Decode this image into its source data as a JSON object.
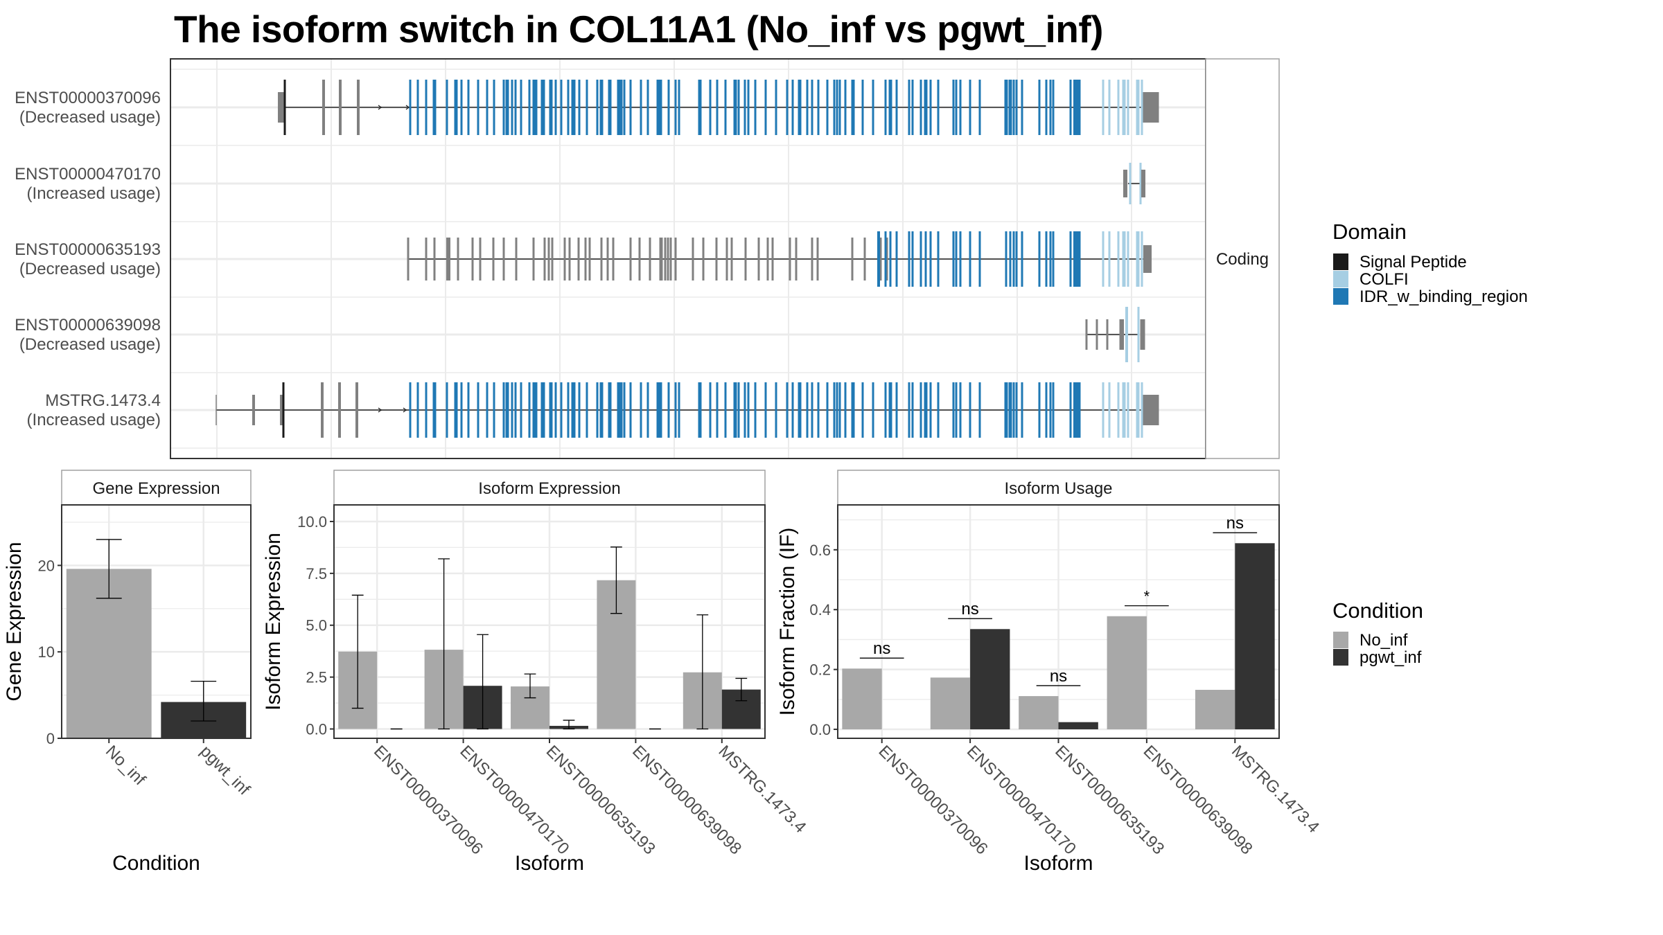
{
  "title": "The isoform switch in COL11A1 (No_inf vs pgwt_inf)",
  "colors": {
    "No_inf": "#a8a8a8",
    "pgwt_inf": "#333333",
    "signal_peptide": "#1a1a1a",
    "COLFI": "#a6cee3",
    "IDR": "#1f78b4",
    "utr": "#808080",
    "grid": "#ebebeb",
    "strip_border": "#a0a0a0",
    "panel_border": "#333333"
  },
  "chart_data": [
    {
      "type": "table",
      "name": "transcript_structure",
      "strip_label": "Coding",
      "rows": [
        {
          "id": "ENST00000370096",
          "label": "ENST00000370096",
          "sublabel": "(Decreased usage)"
        },
        {
          "id": "ENST00000470170",
          "label": "ENST00000470170",
          "sublabel": "(Increased usage)"
        },
        {
          "id": "ENST00000635193",
          "label": "ENST00000635193",
          "sublabel": "(Decreased usage)"
        },
        {
          "id": "ENST00000639098",
          "label": "ENST00000639098",
          "sublabel": "(Decreased usage)"
        },
        {
          "id": "MSTRG.1473.4",
          "label": "MSTRG.1473.4",
          "sublabel": "(Increased usage)"
        }
      ],
      "legend": {
        "title": "Domain",
        "items": [
          {
            "label": "Signal Peptide",
            "color_key": "signal_peptide"
          },
          {
            "label": "COLFI",
            "color_key": "COLFI"
          },
          {
            "label": "IDR_w_binding_region",
            "color_key": "IDR"
          }
        ],
        "placement": "right"
      }
    },
    {
      "type": "bar",
      "name": "gene_expression",
      "title": "Gene Expression",
      "xlabel": "Condition",
      "ylabel": "Gene Expression",
      "categories": [
        "No_inf",
        "pgwt_inf"
      ],
      "values": [
        19.6,
        4.2
      ],
      "error_low": [
        16.2,
        2.0
      ],
      "error_high": [
        23.0,
        6.6
      ],
      "ylim": [
        0,
        27
      ],
      "yticks": [
        0,
        10,
        20
      ]
    },
    {
      "type": "bar",
      "name": "isoform_expression",
      "title": "Isoform Expression",
      "xlabel": "Isoform",
      "ylabel": "Isoform Expression",
      "categories": [
        "ENST00000370096",
        "ENST00000470170",
        "ENST00000635193",
        "ENST00000639098",
        "MSTRG.1473.4"
      ],
      "series": [
        {
          "name": "No_inf",
          "values": [
            3.73,
            3.82,
            2.05,
            7.17,
            2.73
          ],
          "error_low": [
            1.0,
            0.0,
            1.5,
            5.57,
            0.0
          ],
          "error_high": [
            6.45,
            8.2,
            2.65,
            8.77,
            5.5
          ]
        },
        {
          "name": "pgwt_inf",
          "values": [
            0.0,
            2.08,
            0.15,
            0.0,
            1.9
          ],
          "error_low": [
            0.0,
            0.0,
            0.0,
            0.0,
            1.36
          ],
          "error_high": [
            0.0,
            4.55,
            0.42,
            0.0,
            2.44
          ]
        }
      ],
      "ylim": [
        -0.45,
        10.8
      ],
      "yticks": [
        0.0,
        2.5,
        5.0,
        7.5,
        10.0
      ],
      "ytick_labels": [
        "0.0",
        "2.5",
        "5.0",
        "7.5",
        "10.0"
      ]
    },
    {
      "type": "bar",
      "name": "isoform_usage",
      "title": "Isoform Usage",
      "xlabel": "Isoform",
      "ylabel": "Isoform Fraction (IF)",
      "categories": [
        "ENST00000370096",
        "ENST00000470170",
        "ENST00000635193",
        "ENST00000639098",
        "MSTRG.1473.4"
      ],
      "series": [
        {
          "name": "No_inf",
          "values": [
            0.203,
            0.173,
            0.111,
            0.378,
            0.132
          ]
        },
        {
          "name": "pgwt_inf",
          "values": [
            0.0,
            0.335,
            0.024,
            0.0,
            0.622
          ]
        }
      ],
      "significance": [
        "ns",
        "ns",
        "ns",
        "*",
        "ns"
      ],
      "ylim": [
        -0.03,
        0.75
      ],
      "yticks": [
        0.0,
        0.2,
        0.4,
        0.6
      ],
      "ytick_labels": [
        "0.0",
        "0.2",
        "0.4",
        "0.6"
      ]
    }
  ],
  "condition_legend": {
    "title": "Condition",
    "items": [
      {
        "label": "No_inf",
        "color_key": "No_inf"
      },
      {
        "label": "pgwt_inf",
        "color_key": "pgwt_inf"
      }
    ],
    "placement": "right"
  }
}
